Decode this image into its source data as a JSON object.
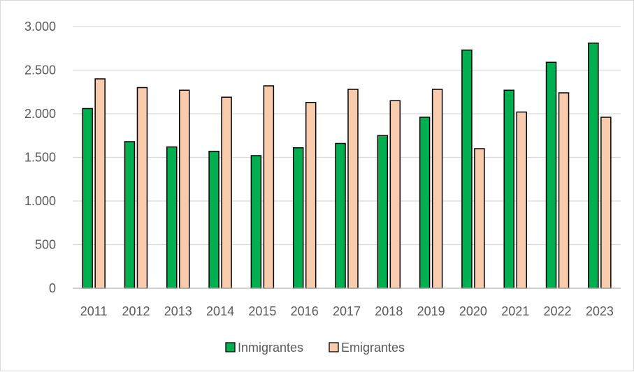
{
  "chart_data": {
    "type": "bar",
    "title": "",
    "xlabel": "",
    "ylabel": "",
    "categories": [
      "2011",
      "2012",
      "2013",
      "2014",
      "2015",
      "2016",
      "2017",
      "2018",
      "2019",
      "2020",
      "2021",
      "2022",
      "2023"
    ],
    "series": [
      {
        "name": "Inmigrantes",
        "color": "#00b050",
        "values": [
          2060,
          1680,
          1620,
          1570,
          1520,
          1610,
          1660,
          1750,
          1960,
          2730,
          2270,
          2590,
          2810
        ]
      },
      {
        "name": "Emigrantes",
        "color": "#f8cbad",
        "values": [
          2400,
          2300,
          2270,
          2190,
          2320,
          2130,
          2280,
          2150,
          2280,
          1600,
          2020,
          2240,
          1960
        ]
      }
    ],
    "ylim": [
      0,
      3000
    ],
    "yticks": [
      0,
      500,
      1000,
      1500,
      2000,
      2500,
      3000
    ],
    "ytick_labels": [
      "0",
      "500",
      "1.000",
      "1.500",
      "2.000",
      "2.500",
      "3.000"
    ],
    "grid": true,
    "legend_position": "bottom"
  }
}
